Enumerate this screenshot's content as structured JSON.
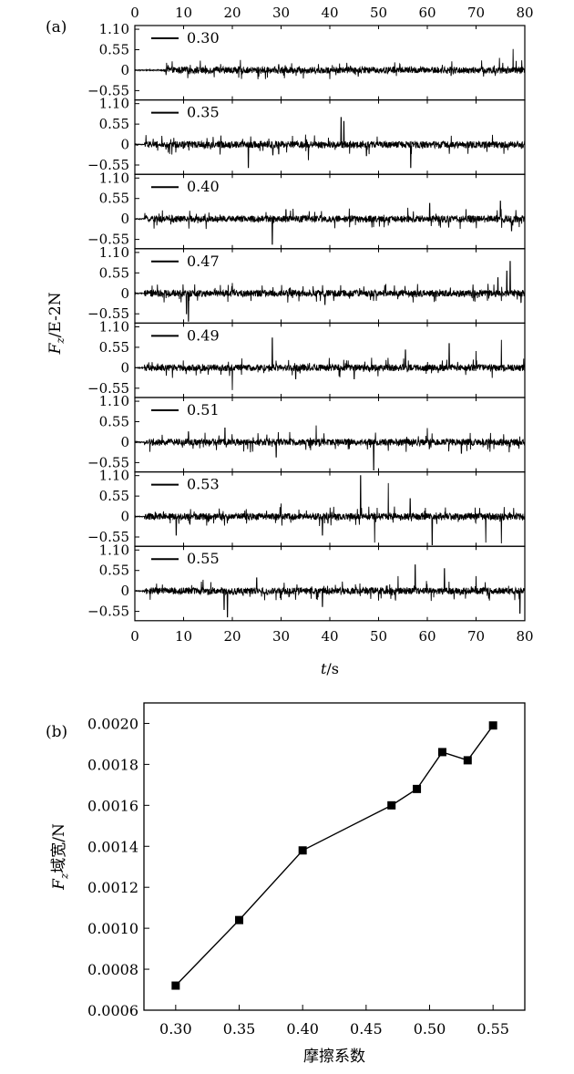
{
  "figure": {
    "panel_a_label": "(a)",
    "panel_b_label": "(b)"
  },
  "chart_data": [
    {
      "type": "line",
      "panel": "a",
      "xlabel": "t/s",
      "ylabel": "F_z/E-2N",
      "xlim": [
        0,
        80
      ],
      "x_ticks": [
        "0",
        "10",
        "20",
        "30",
        "40",
        "50",
        "60",
        "70",
        "80"
      ],
      "ylim": [
        -0.8,
        1.2
      ],
      "y_tick_values": [
        1.1,
        0.55,
        0,
        -0.55
      ],
      "y_ticks": [
        "1.10",
        "0.55",
        "0",
        "−0.55"
      ],
      "grid": false,
      "legend_placement": "top-left",
      "note": "8 stacked strips of a noisy force signal; values are visually approximated",
      "series": [
        {
          "name": "0.30",
          "start": 6,
          "spikes": [
            [
              74.8,
              0.33
            ],
            [
              77.6,
              0.57
            ],
            [
              42.0,
              0.18
            ],
            [
              29.5,
              0.15
            ]
          ]
        },
        {
          "name": "0.35",
          "start": 2,
          "spikes": [
            [
              42.3,
              0.73
            ],
            [
              42.9,
              0.62
            ],
            [
              23.3,
              -0.62
            ],
            [
              56.6,
              -0.62
            ],
            [
              28.3,
              -0.28
            ],
            [
              35.6,
              -0.42
            ],
            [
              47.5,
              -0.3
            ],
            [
              29.5,
              -0.25
            ]
          ]
        },
        {
          "name": "0.40",
          "start": 2,
          "spikes": [
            [
              28.2,
              -0.68
            ],
            [
              60.5,
              0.42
            ],
            [
              75.0,
              0.48
            ],
            [
              56.0,
              0.3
            ],
            [
              44.0,
              0.28
            ],
            [
              77.3,
              -0.32
            ],
            [
              31.0,
              0.25
            ]
          ]
        },
        {
          "name": "0.47",
          "start": 2,
          "spikes": [
            [
              11.0,
              -0.75
            ],
            [
              10.6,
              -0.55
            ],
            [
              77.0,
              0.86
            ],
            [
              76.3,
              0.6
            ],
            [
              74.5,
              0.42
            ],
            [
              39.0,
              -0.3
            ],
            [
              20.0,
              0.28
            ],
            [
              58.0,
              0.25
            ]
          ]
        },
        {
          "name": "0.49",
          "start": 2,
          "spikes": [
            [
              28.2,
              0.8
            ],
            [
              20.0,
              -0.6
            ],
            [
              55.5,
              0.48
            ],
            [
              64.5,
              0.65
            ],
            [
              70.0,
              0.45
            ],
            [
              75.2,
              0.75
            ],
            [
              33.0,
              -0.3
            ],
            [
              45.0,
              -0.3
            ]
          ]
        },
        {
          "name": "0.51",
          "start": 2,
          "spikes": [
            [
              49.0,
              -0.75
            ],
            [
              37.2,
              0.45
            ],
            [
              60.0,
              0.38
            ],
            [
              18.5,
              0.38
            ],
            [
              29.0,
              -0.4
            ],
            [
              67.0,
              -0.3
            ],
            [
              11.0,
              0.28
            ]
          ]
        },
        {
          "name": "0.53",
          "start": 2,
          "spikes": [
            [
              46.3,
              1.1
            ],
            [
              52.0,
              0.9
            ],
            [
              49.2,
              -0.7
            ],
            [
              61.0,
              -0.76
            ],
            [
              72.0,
              -0.7
            ],
            [
              75.2,
              -0.72
            ],
            [
              38.5,
              -0.5
            ],
            [
              56.5,
              0.48
            ],
            [
              8.5,
              -0.5
            ],
            [
              30.0,
              0.35
            ]
          ]
        },
        {
          "name": "0.55",
          "start": 2,
          "spikes": [
            [
              19.0,
              -0.7
            ],
            [
              18.3,
              -0.5
            ],
            [
              57.5,
              0.7
            ],
            [
              63.5,
              0.6
            ],
            [
              54.0,
              0.4
            ],
            [
              79.0,
              -0.6
            ],
            [
              38.5,
              -0.42
            ],
            [
              70.0,
              0.4
            ],
            [
              25.0,
              0.35
            ],
            [
              14.0,
              0.3
            ]
          ]
        }
      ]
    },
    {
      "type": "line",
      "panel": "b",
      "xlabel": "摩擦系数",
      "ylabel": "F_z域宽/N",
      "xlim": [
        0.275,
        0.575
      ],
      "ylim": [
        0.0006,
        0.0021
      ],
      "x_ticks": [
        "0.30",
        "0.35",
        "0.40",
        "0.45",
        "0.50",
        "0.55"
      ],
      "x_tick_values": [
        0.3,
        0.35,
        0.4,
        0.45,
        0.5,
        0.55
      ],
      "y_ticks": [
        "0.0006",
        "0.0008",
        "0.0010",
        "0.0012",
        "0.0014",
        "0.0016",
        "0.0018",
        "0.0020"
      ],
      "y_tick_values": [
        0.0006,
        0.0008,
        0.001,
        0.0012,
        0.0014,
        0.0016,
        0.0018,
        0.002
      ],
      "grid": false,
      "marker": "square",
      "x": [
        0.3,
        0.35,
        0.4,
        0.47,
        0.49,
        0.51,
        0.53,
        0.55
      ],
      "y": [
        0.00072,
        0.00104,
        0.00138,
        0.0016,
        0.00168,
        0.00186,
        0.00182,
        0.00199
      ]
    }
  ]
}
